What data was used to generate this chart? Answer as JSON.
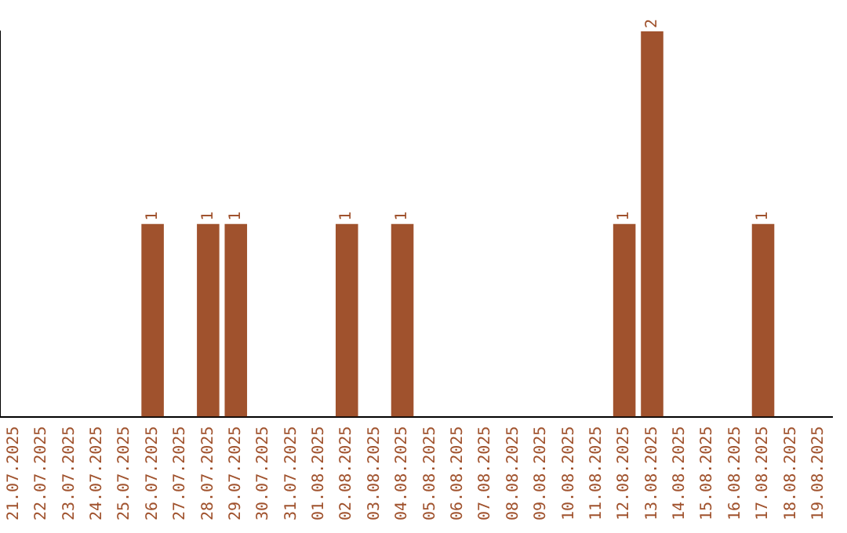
{
  "chart_data": {
    "type": "bar",
    "categories": [
      "21.07.2025",
      "22.07.2025",
      "23.07.2025",
      "24.07.2025",
      "25.07.2025",
      "26.07.2025",
      "27.07.2025",
      "28.07.2025",
      "29.07.2025",
      "30.07.2025",
      "31.07.2025",
      "01.08.2025",
      "02.08.2025",
      "03.08.2025",
      "04.08.2025",
      "05.08.2025",
      "06.08.2025",
      "07.08.2025",
      "08.08.2025",
      "09.08.2025",
      "10.08.2025",
      "11.08.2025",
      "12.08.2025",
      "13.08.2025",
      "14.08.2025",
      "15.08.2025",
      "16.08.2025",
      "17.08.2025",
      "18.08.2025",
      "19.08.2025"
    ],
    "values": [
      0,
      0,
      0,
      0,
      0,
      1,
      0,
      1,
      1,
      0,
      0,
      0,
      1,
      0,
      1,
      0,
      0,
      0,
      0,
      0,
      0,
      0,
      1,
      2,
      0,
      0,
      0,
      1,
      0,
      0
    ],
    "value_labels": [
      null,
      null,
      null,
      null,
      null,
      "1",
      null,
      "1",
      "1",
      null,
      null,
      null,
      "1",
      null,
      "1",
      null,
      null,
      null,
      null,
      null,
      null,
      null,
      "1",
      "2",
      null,
      null,
      null,
      "1",
      null,
      null
    ],
    "color": "#a0522d",
    "ylim": [
      0,
      2
    ],
    "tick_labels": "x",
    "grid": false,
    "legend": false
  }
}
